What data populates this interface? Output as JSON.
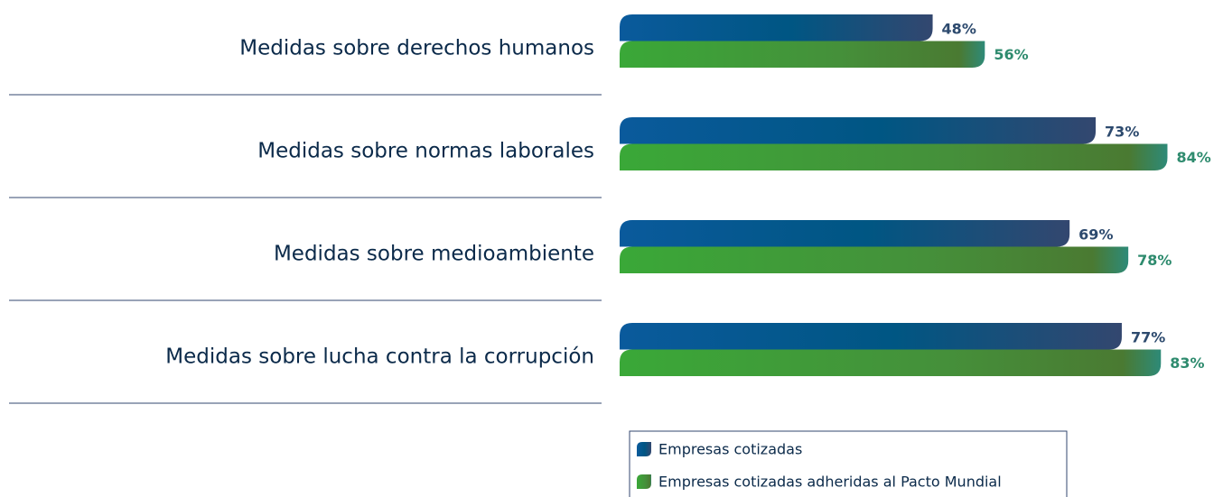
{
  "chart_data": {
    "type": "bar",
    "orientation": "horizontal",
    "categories": [
      "Medidas sobre derechos humanos",
      "Medidas sobre normas laborales",
      "Medidas sobre medioambiente",
      "Medidas sobre lucha contra la corrupción"
    ],
    "series": [
      {
        "name": "Empresas cotizadas",
        "color": "#0a5a92",
        "values": [
          48,
          73,
          69,
          77
        ],
        "value_labels": [
          "48%",
          "73%",
          "69%",
          "77%"
        ]
      },
      {
        "name": "Empresas cotizadas adheridas al Pacto Mundial",
        "color": "#3a9a35",
        "values": [
          56,
          84,
          78,
          83
        ],
        "value_labels": [
          "56%",
          "84%",
          "78%",
          "83%"
        ]
      }
    ]
  }
}
